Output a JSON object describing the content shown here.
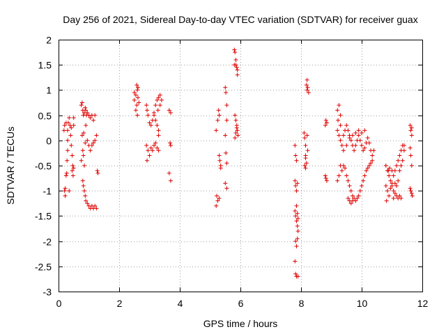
{
  "chart_data": {
    "type": "scatter",
    "title": "Day 256 of 2021, Sidereal Day-to-day VTEC variation (SDTVAR) for receiver guax",
    "xlabel": "GPS time / hours",
    "ylabel": "SDTVAR / TECUs",
    "xlim": [
      0,
      12
    ],
    "ylim": [
      -3,
      2
    ],
    "xticks": [
      "0",
      "2",
      "4",
      "6",
      "8",
      "10",
      "12"
    ],
    "yticks": [
      "2",
      "1.5",
      "1",
      "0.5",
      "0",
      "-0.5",
      "-1",
      "-1.5",
      "-2",
      "-2.5",
      "-3"
    ],
    "grid": true,
    "marker": "+",
    "color": "#e00000",
    "series": [
      {
        "name": "SDTVAR",
        "points": [
          [
            0.2,
            -1.0
          ],
          [
            0.22,
            -0.95
          ],
          [
            0.25,
            -0.7
          ],
          [
            0.28,
            -0.4
          ],
          [
            0.3,
            -0.2
          ],
          [
            0.3,
            0.0
          ],
          [
            0.3,
            0.2
          ],
          [
            0.32,
            0.35
          ],
          [
            0.35,
            0.45
          ],
          [
            0.38,
            0.3
          ],
          [
            0.4,
            0.1
          ],
          [
            0.42,
            -0.1
          ],
          [
            0.45,
            -0.3
          ],
          [
            0.45,
            -0.6
          ],
          [
            0.48,
            -0.7
          ],
          [
            0.5,
            -0.55
          ],
          [
            0.5,
            0.3
          ],
          [
            0.5,
            0.45
          ],
          [
            0.2,
            0.3
          ],
          [
            0.25,
            0.35
          ],
          [
            0.27,
            -0.65
          ],
          [
            0.35,
            -1.0
          ],
          [
            0.22,
            -1.1
          ],
          [
            0.18,
            0.2
          ],
          [
            0.42,
            0.25
          ],
          [
            0.47,
            -0.5
          ],
          [
            0.75,
            0.7
          ],
          [
            0.78,
            0.75
          ],
          [
            0.8,
            0.6
          ],
          [
            0.82,
            0.5
          ],
          [
            0.85,
            0.55
          ],
          [
            0.88,
            0.65
          ],
          [
            0.9,
            0.6
          ],
          [
            0.92,
            0.5
          ],
          [
            0.95,
            0.55
          ],
          [
            1.0,
            0.5
          ],
          [
            1.05,
            0.45
          ],
          [
            1.1,
            0.5
          ],
          [
            1.15,
            0.4
          ],
          [
            1.2,
            0.5
          ],
          [
            0.75,
            -0.4
          ],
          [
            0.8,
            -0.2
          ],
          [
            0.82,
            -0.3
          ],
          [
            0.85,
            -0.5
          ],
          [
            0.8,
            -0.8
          ],
          [
            0.82,
            -0.9
          ],
          [
            0.85,
            -1.0
          ],
          [
            0.88,
            -1.1
          ],
          [
            0.9,
            -1.2
          ],
          [
            0.95,
            -1.25
          ],
          [
            1.0,
            -1.3
          ],
          [
            1.05,
            -1.35
          ],
          [
            1.1,
            -1.3
          ],
          [
            1.15,
            -1.35
          ],
          [
            1.2,
            -1.3
          ],
          [
            1.25,
            -1.35
          ],
          [
            0.9,
            0.3
          ],
          [
            0.95,
            0.0
          ],
          [
            1.0,
            -0.1
          ],
          [
            1.05,
            -0.2
          ],
          [
            1.1,
            -0.1
          ],
          [
            1.15,
            -0.05
          ],
          [
            1.2,
            0.0
          ],
          [
            1.25,
            0.1
          ],
          [
            1.28,
            -0.6
          ],
          [
            1.3,
            -0.65
          ],
          [
            0.78,
            0.1
          ],
          [
            0.83,
            0.15
          ],
          [
            0.88,
            -0.05
          ],
          [
            2.5,
            0.8
          ],
          [
            2.55,
            0.9
          ],
          [
            2.6,
            1.0
          ],
          [
            2.62,
            1.05
          ],
          [
            2.55,
            0.6
          ],
          [
            2.58,
            0.7
          ],
          [
            2.6,
            0.5
          ],
          [
            2.62,
            0.85
          ],
          [
            2.65,
            0.75
          ],
          [
            2.9,
            0.7
          ],
          [
            2.92,
            0.6
          ],
          [
            2.95,
            0.5
          ],
          [
            3.0,
            0.35
          ],
          [
            3.05,
            0.3
          ],
          [
            3.1,
            0.4
          ],
          [
            3.15,
            0.5
          ],
          [
            3.2,
            0.7
          ],
          [
            3.25,
            0.8
          ],
          [
            3.3,
            0.85
          ],
          [
            3.35,
            0.9
          ],
          [
            3.4,
            0.8
          ],
          [
            3.15,
            0.55
          ],
          [
            3.2,
            0.4
          ],
          [
            3.25,
            0.3
          ],
          [
            3.3,
            0.2
          ],
          [
            3.28,
            0.6
          ],
          [
            3.3,
            0.1
          ],
          [
            2.9,
            -0.1
          ],
          [
            2.95,
            -0.2
          ],
          [
            3.0,
            -0.3
          ],
          [
            3.05,
            -0.15
          ],
          [
            3.1,
            -0.2
          ],
          [
            3.15,
            -0.1
          ],
          [
            3.2,
            -0.05
          ],
          [
            3.25,
            -0.15
          ],
          [
            3.3,
            -0.2
          ],
          [
            2.92,
            -0.4
          ],
          [
            3.65,
            0.6
          ],
          [
            3.7,
            0.55
          ],
          [
            3.68,
            -0.05
          ],
          [
            3.7,
            -0.1
          ],
          [
            3.65,
            -0.65
          ],
          [
            3.7,
            -0.8
          ],
          [
            2.5,
            0.95
          ],
          [
            2.58,
            1.1
          ],
          [
            3.35,
            0.7
          ],
          [
            5.2,
            0.2
          ],
          [
            5.25,
            0.4
          ],
          [
            5.3,
            0.5
          ],
          [
            5.28,
            0.6
          ],
          [
            5.3,
            -0.3
          ],
          [
            5.32,
            -0.4
          ],
          [
            5.35,
            -0.5
          ],
          [
            5.35,
            -0.55
          ],
          [
            5.22,
            -1.1
          ],
          [
            5.25,
            -1.2
          ],
          [
            5.3,
            -1.15
          ],
          [
            5.2,
            -1.3
          ],
          [
            5.5,
            1.05
          ],
          [
            5.52,
            0.95
          ],
          [
            5.55,
            0.7
          ],
          [
            5.55,
            0.4
          ],
          [
            5.5,
            0.1
          ],
          [
            5.52,
            -0.25
          ],
          [
            5.55,
            -0.45
          ],
          [
            5.5,
            -0.85
          ],
          [
            5.55,
            -0.95
          ],
          [
            5.8,
            1.8
          ],
          [
            5.82,
            1.75
          ],
          [
            5.85,
            1.6
          ],
          [
            5.85,
            1.5
          ],
          [
            5.88,
            1.45
          ],
          [
            5.9,
            1.4
          ],
          [
            5.9,
            1.3
          ],
          [
            5.8,
            1.5
          ],
          [
            5.82,
            0.5
          ],
          [
            5.85,
            0.4
          ],
          [
            5.88,
            0.3
          ],
          [
            5.9,
            0.2
          ],
          [
            5.92,
            0.1
          ],
          [
            5.85,
            0.15
          ],
          [
            5.82,
            0.05
          ],
          [
            5.88,
            0.25
          ],
          [
            7.8,
            -0.1
          ],
          [
            7.82,
            -0.3
          ],
          [
            7.85,
            -0.4
          ],
          [
            7.8,
            -0.8
          ],
          [
            7.82,
            -0.9
          ],
          [
            7.85,
            -1.0
          ],
          [
            7.88,
            -0.85
          ],
          [
            7.8,
            -1.4
          ],
          [
            7.82,
            -1.5
          ],
          [
            7.85,
            -1.6
          ],
          [
            7.88,
            -1.7
          ],
          [
            7.9,
            -1.8
          ],
          [
            7.85,
            -1.3
          ],
          [
            7.88,
            -1.45
          ],
          [
            7.9,
            -1.55
          ],
          [
            7.82,
            -2.0
          ],
          [
            7.85,
            -2.1
          ],
          [
            7.8,
            -2.4
          ],
          [
            7.82,
            -2.65
          ],
          [
            7.85,
            -2.7
          ],
          [
            7.9,
            -2.7
          ],
          [
            7.88,
            -1.95
          ],
          [
            8.1,
            0.15
          ],
          [
            8.12,
            0.05
          ],
          [
            8.15,
            -0.1
          ],
          [
            8.15,
            -0.3
          ],
          [
            8.18,
            -0.45
          ],
          [
            8.12,
            -0.5
          ],
          [
            8.15,
            -0.55
          ],
          [
            8.2,
            1.0
          ],
          [
            8.18,
            1.1
          ],
          [
            8.22,
            1.05
          ],
          [
            8.2,
            1.2
          ],
          [
            8.25,
            0.95
          ],
          [
            8.2,
            0.1
          ],
          [
            8.22,
            -0.2
          ],
          [
            8.15,
            -0.35
          ],
          [
            8.8,
            0.3
          ],
          [
            8.82,
            0.4
          ],
          [
            8.85,
            0.35
          ],
          [
            8.8,
            -0.7
          ],
          [
            8.85,
            -0.8
          ],
          [
            8.82,
            -0.75
          ],
          [
            9.2,
            0.6
          ],
          [
            9.25,
            0.7
          ],
          [
            9.3,
            0.5
          ],
          [
            9.2,
            0.2
          ],
          [
            9.25,
            0.1
          ],
          [
            9.3,
            0.0
          ],
          [
            9.35,
            -0.1
          ],
          [
            9.4,
            0.1
          ],
          [
            9.45,
            0.2
          ],
          [
            9.5,
            0.3
          ],
          [
            9.55,
            0.2
          ],
          [
            9.6,
            0.1
          ],
          [
            9.65,
            0.0
          ],
          [
            9.7,
            -0.1
          ],
          [
            9.75,
            -0.2
          ],
          [
            9.8,
            -0.1
          ],
          [
            9.85,
            0.0
          ],
          [
            9.9,
            0.1
          ],
          [
            9.95,
            0.0
          ],
          [
            10.0,
            -0.1
          ],
          [
            10.05,
            -0.2
          ],
          [
            10.1,
            -0.15
          ],
          [
            10.15,
            -0.05
          ],
          [
            10.2,
            0.05
          ],
          [
            10.25,
            -0.05
          ],
          [
            10.3,
            -0.2
          ],
          [
            10.35,
            -0.3
          ],
          [
            10.4,
            -0.2
          ],
          [
            9.3,
            -0.5
          ],
          [
            9.35,
            -0.6
          ],
          [
            9.4,
            -0.5
          ],
          [
            9.45,
            -0.55
          ],
          [
            9.5,
            -0.7
          ],
          [
            9.55,
            -0.8
          ],
          [
            9.6,
            -0.9
          ],
          [
            9.65,
            -1.0
          ],
          [
            9.7,
            -1.1
          ],
          [
            9.75,
            -1.15
          ],
          [
            9.8,
            -1.2
          ],
          [
            9.85,
            -1.15
          ],
          [
            9.9,
            -1.1
          ],
          [
            9.95,
            -1.0
          ],
          [
            10.0,
            -0.9
          ],
          [
            10.05,
            -0.8
          ],
          [
            10.1,
            -0.7
          ],
          [
            10.15,
            -0.6
          ],
          [
            10.2,
            -0.55
          ],
          [
            10.25,
            -0.5
          ],
          [
            10.3,
            -0.45
          ],
          [
            10.35,
            -0.4
          ],
          [
            9.2,
            -0.8
          ],
          [
            9.25,
            -0.7
          ],
          [
            9.55,
            -1.15
          ],
          [
            9.6,
            -1.2
          ],
          [
            9.65,
            -1.25
          ],
          [
            9.7,
            -1.2
          ],
          [
            10.1,
            0.2
          ],
          [
            10.0,
            0.15
          ],
          [
            9.9,
            0.2
          ],
          [
            9.8,
            0.15
          ],
          [
            9.7,
            0.1
          ],
          [
            9.6,
            0.05
          ],
          [
            9.5,
            -0.1
          ],
          [
            9.4,
            -0.2
          ],
          [
            9.3,
            0.3
          ],
          [
            9.22,
            0.4
          ],
          [
            10.8,
            -0.5
          ],
          [
            10.85,
            -0.6
          ],
          [
            10.9,
            -0.7
          ],
          [
            10.95,
            -0.8
          ],
          [
            11.0,
            -0.9
          ],
          [
            11.05,
            -1.0
          ],
          [
            11.1,
            -1.05
          ],
          [
            11.15,
            -1.1
          ],
          [
            11.2,
            -1.15
          ],
          [
            11.25,
            -1.1
          ],
          [
            11.3,
            -1.15
          ],
          [
            10.8,
            -0.9
          ],
          [
            10.85,
            -1.0
          ],
          [
            10.9,
            -1.1
          ],
          [
            10.95,
            -0.95
          ],
          [
            11.0,
            -0.85
          ],
          [
            11.05,
            -0.7
          ],
          [
            11.1,
            -0.6
          ],
          [
            11.15,
            -0.5
          ],
          [
            11.2,
            -0.4
          ],
          [
            11.25,
            -0.3
          ],
          [
            11.3,
            -0.2
          ],
          [
            11.35,
            -0.1
          ],
          [
            11.4,
            -0.2
          ],
          [
            11.35,
            -0.4
          ],
          [
            11.3,
            -0.5
          ],
          [
            11.25,
            -0.6
          ],
          [
            11.2,
            -0.8
          ],
          [
            11.15,
            -0.9
          ],
          [
            11.1,
            -0.85
          ],
          [
            10.82,
            -1.2
          ],
          [
            10.88,
            -0.6
          ],
          [
            10.92,
            -0.55
          ],
          [
            11.0,
            -0.6
          ],
          [
            11.05,
            -1.15
          ],
          [
            11.4,
            -0.1
          ],
          [
            11.6,
            0.3
          ],
          [
            11.62,
            0.2
          ],
          [
            11.65,
            0.1
          ],
          [
            11.6,
            -0.15
          ],
          [
            11.62,
            -0.3
          ],
          [
            11.65,
            -0.5
          ],
          [
            11.6,
            -0.95
          ],
          [
            11.62,
            -1.0
          ],
          [
            11.65,
            -1.05
          ],
          [
            11.67,
            -1.1
          ],
          [
            11.65,
            0.25
          ]
        ]
      }
    ]
  }
}
